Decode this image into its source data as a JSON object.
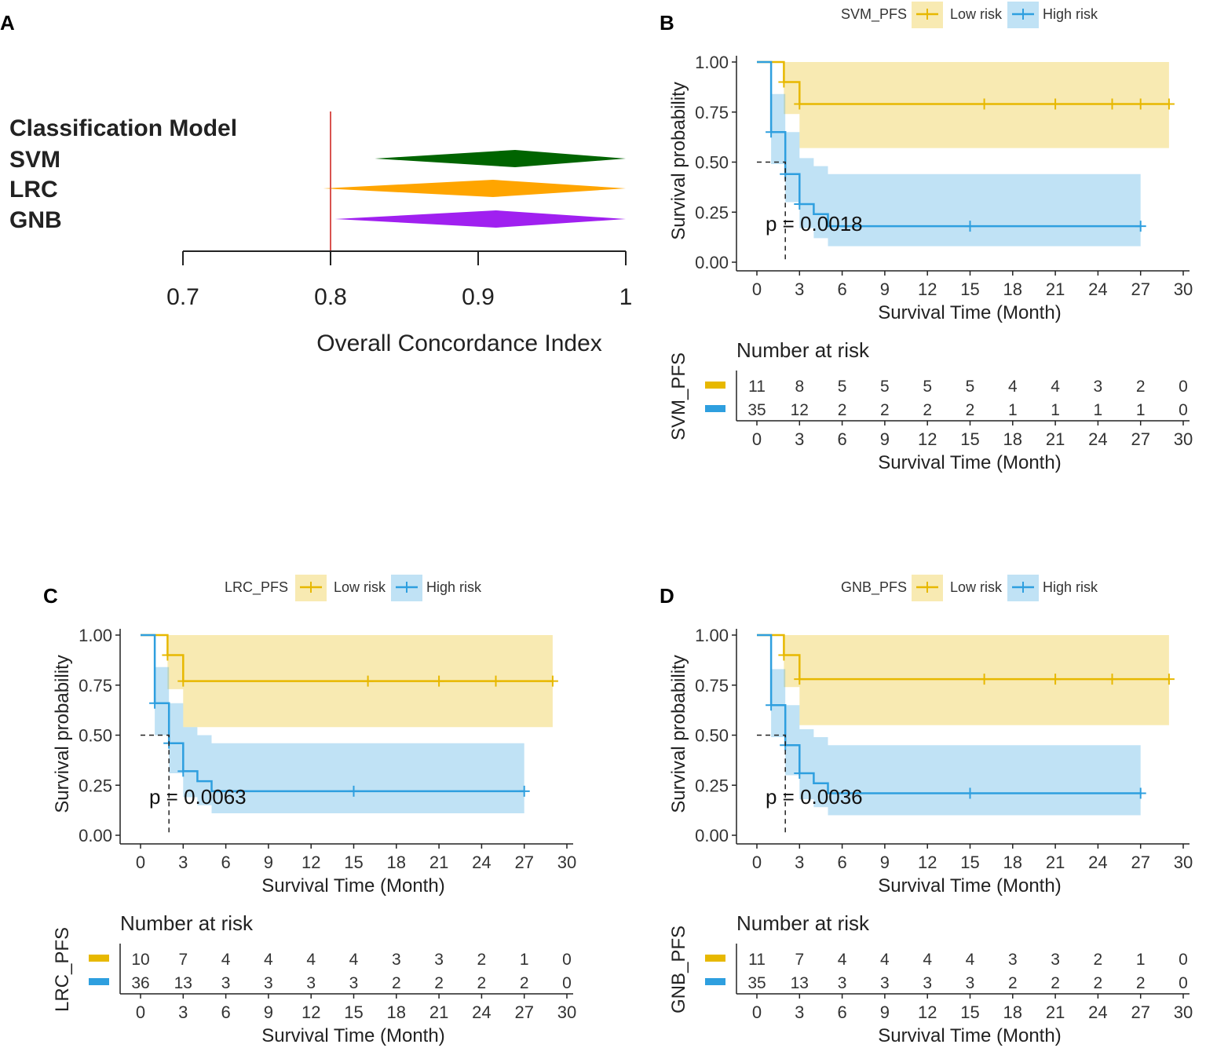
{
  "chart_data": [
    {
      "type": "forest",
      "panel": "A",
      "header": "Classification Model",
      "models": [
        {
          "name": "SVM",
          "low": 0.83,
          "estimate": 0.925,
          "high": 1.0,
          "color": "#006400"
        },
        {
          "name": "LRC",
          "low": 0.795,
          "estimate": 0.91,
          "high": 1.0,
          "color": "#FFA500"
        },
        {
          "name": "GNB",
          "low": 0.803,
          "estimate": 0.912,
          "high": 1.0,
          "color": "#A020F0"
        }
      ],
      "reference_line": 0.8,
      "reference_color": "#D9534F",
      "xlim": [
        0.7,
        1.0
      ],
      "ticks": [
        "0.7",
        "0.8",
        "0.9",
        "1"
      ],
      "tick_values": [
        0.7,
        0.8,
        0.9,
        1.0
      ],
      "xlabel": "Overall Concordance Index"
    },
    {
      "type": "survival",
      "panel": "B",
      "strata_title": "SVM_PFS",
      "low_label": "Low risk",
      "high_label": "High risk",
      "low_color": "#E7B800",
      "high_color": "#2E9FDF",
      "xlabel": "Survival Time (Month)",
      "ylabel": "Survival probability",
      "xticks": [
        "0",
        "3",
        "6",
        "9",
        "12",
        "15",
        "18",
        "21",
        "24",
        "27",
        "30"
      ],
      "yticks": [
        "0.00",
        "0.25",
        "0.50",
        "0.75",
        "1.00"
      ],
      "pvalue": "p = 0.0018",
      "median_high": 2,
      "low": {
        "steps": [
          [
            0,
            1.0
          ],
          [
            1.9,
            0.9
          ],
          [
            3,
            0.79
          ],
          [
            29,
            0.79
          ]
        ],
        "ci": [
          [
            0,
            1,
            1
          ],
          [
            1.9,
            0.74,
            1
          ],
          [
            3,
            0.57,
            1
          ],
          [
            29,
            0.57,
            1
          ]
        ],
        "censors": [
          [
            1.9,
            0.9
          ],
          [
            3,
            0.79
          ],
          [
            16,
            0.79
          ],
          [
            21,
            0.79
          ],
          [
            25,
            0.79
          ],
          [
            27,
            0.79
          ],
          [
            29,
            0.79
          ]
        ]
      },
      "high": {
        "steps": [
          [
            0,
            1.0
          ],
          [
            1,
            0.65
          ],
          [
            2,
            0.44
          ],
          [
            3,
            0.29
          ],
          [
            4,
            0.24
          ],
          [
            5,
            0.18
          ],
          [
            27,
            0.18
          ]
        ],
        "ci": [
          [
            1,
            0.49,
            0.84
          ],
          [
            2,
            0.3,
            0.65
          ],
          [
            3,
            0.17,
            0.52
          ],
          [
            4,
            0.12,
            0.48
          ],
          [
            5,
            0.08,
            0.44
          ],
          [
            27,
            0.08,
            0.44
          ]
        ],
        "censors": [
          [
            1,
            0.65
          ],
          [
            2,
            0.44
          ],
          [
            3,
            0.29
          ],
          [
            15,
            0.18
          ],
          [
            27,
            0.18
          ]
        ]
      },
      "risk_table": {
        "title": "Number at risk",
        "ylabel": "SVM_PFS",
        "low": [
          "11",
          "8",
          "5",
          "5",
          "5",
          "5",
          "4",
          "4",
          "3",
          "2",
          "0"
        ],
        "high": [
          "35",
          "12",
          "2",
          "2",
          "2",
          "2",
          "1",
          "1",
          "1",
          "1",
          "0"
        ]
      }
    },
    {
      "type": "survival",
      "panel": "C",
      "strata_title": "LRC_PFS",
      "low_label": "Low risk",
      "high_label": "High risk",
      "low_color": "#E7B800",
      "high_color": "#2E9FDF",
      "xlabel": "Survival Time (Month)",
      "ylabel": "Survival probability",
      "xticks": [
        "0",
        "3",
        "6",
        "9",
        "12",
        "15",
        "18",
        "21",
        "24",
        "27",
        "30"
      ],
      "yticks": [
        "0.00",
        "0.25",
        "0.50",
        "0.75",
        "1.00"
      ],
      "pvalue": "p = 0.0063",
      "median_high": 2,
      "low": {
        "steps": [
          [
            0,
            1.0
          ],
          [
            1.9,
            0.9
          ],
          [
            3,
            0.77
          ],
          [
            29,
            0.77
          ]
        ],
        "ci": [
          [
            0,
            1,
            1
          ],
          [
            1.9,
            0.73,
            1
          ],
          [
            3,
            0.54,
            1
          ],
          [
            29,
            0.54,
            1
          ]
        ],
        "censors": [
          [
            1.9,
            0.9
          ],
          [
            3,
            0.77
          ],
          [
            16,
            0.77
          ],
          [
            21,
            0.77
          ],
          [
            25,
            0.77
          ],
          [
            29,
            0.77
          ]
        ]
      },
      "high": {
        "steps": [
          [
            0,
            1.0
          ],
          [
            1,
            0.66
          ],
          [
            2,
            0.46
          ],
          [
            3,
            0.32
          ],
          [
            4,
            0.27
          ],
          [
            5,
            0.22
          ],
          [
            27,
            0.22
          ]
        ],
        "ci": [
          [
            1,
            0.5,
            0.84
          ],
          [
            2,
            0.31,
            0.66
          ],
          [
            3,
            0.19,
            0.54
          ],
          [
            4,
            0.15,
            0.5
          ],
          [
            5,
            0.11,
            0.46
          ],
          [
            27,
            0.11,
            0.46
          ]
        ],
        "censors": [
          [
            1,
            0.66
          ],
          [
            2,
            0.46
          ],
          [
            3,
            0.32
          ],
          [
            15,
            0.22
          ],
          [
            27,
            0.22
          ]
        ]
      },
      "risk_table": {
        "title": "Number at risk",
        "ylabel": "LRC_PFS",
        "low": [
          "10",
          "7",
          "4",
          "4",
          "4",
          "4",
          "3",
          "3",
          "2",
          "1",
          "0"
        ],
        "high": [
          "36",
          "13",
          "3",
          "3",
          "3",
          "3",
          "2",
          "2",
          "2",
          "2",
          "0"
        ]
      }
    },
    {
      "type": "survival",
      "panel": "D",
      "strata_title": "GNB_PFS",
      "low_label": "Low risk",
      "high_label": "High risk",
      "low_color": "#E7B800",
      "high_color": "#2E9FDF",
      "xlabel": "Survival Time (Month)",
      "ylabel": "Survival probability",
      "xticks": [
        "0",
        "3",
        "6",
        "9",
        "12",
        "15",
        "18",
        "21",
        "24",
        "27",
        "30"
      ],
      "yticks": [
        "0.00",
        "0.25",
        "0.50",
        "0.75",
        "1.00"
      ],
      "pvalue": "p = 0.0036",
      "median_high": 2,
      "low": {
        "steps": [
          [
            0,
            1.0
          ],
          [
            1.9,
            0.9
          ],
          [
            3,
            0.78
          ],
          [
            29,
            0.78
          ]
        ],
        "ci": [
          [
            0,
            1,
            1
          ],
          [
            1.9,
            0.74,
            1
          ],
          [
            3,
            0.55,
            1
          ],
          [
            29,
            0.55,
            1
          ]
        ],
        "censors": [
          [
            1.9,
            0.9
          ],
          [
            3,
            0.78
          ],
          [
            16,
            0.78
          ],
          [
            21,
            0.78
          ],
          [
            25,
            0.78
          ],
          [
            29,
            0.78
          ]
        ]
      },
      "high": {
        "steps": [
          [
            0,
            1.0
          ],
          [
            1,
            0.65
          ],
          [
            2,
            0.45
          ],
          [
            3,
            0.31
          ],
          [
            4,
            0.26
          ],
          [
            5,
            0.21
          ],
          [
            27,
            0.21
          ]
        ],
        "ci": [
          [
            1,
            0.49,
            0.83
          ],
          [
            2,
            0.3,
            0.65
          ],
          [
            3,
            0.18,
            0.53
          ],
          [
            4,
            0.14,
            0.49
          ],
          [
            5,
            0.1,
            0.45
          ],
          [
            27,
            0.1,
            0.45
          ]
        ],
        "censors": [
          [
            1,
            0.65
          ],
          [
            2,
            0.45
          ],
          [
            3,
            0.31
          ],
          [
            15,
            0.21
          ],
          [
            27,
            0.21
          ]
        ]
      },
      "risk_table": {
        "title": "Number at risk",
        "ylabel": "GNB_PFS",
        "low": [
          "11",
          "7",
          "4",
          "4",
          "4",
          "4",
          "3",
          "3",
          "2",
          "1",
          "0"
        ],
        "high": [
          "35",
          "13",
          "3",
          "3",
          "3",
          "3",
          "2",
          "2",
          "2",
          "2",
          "0"
        ]
      }
    }
  ]
}
